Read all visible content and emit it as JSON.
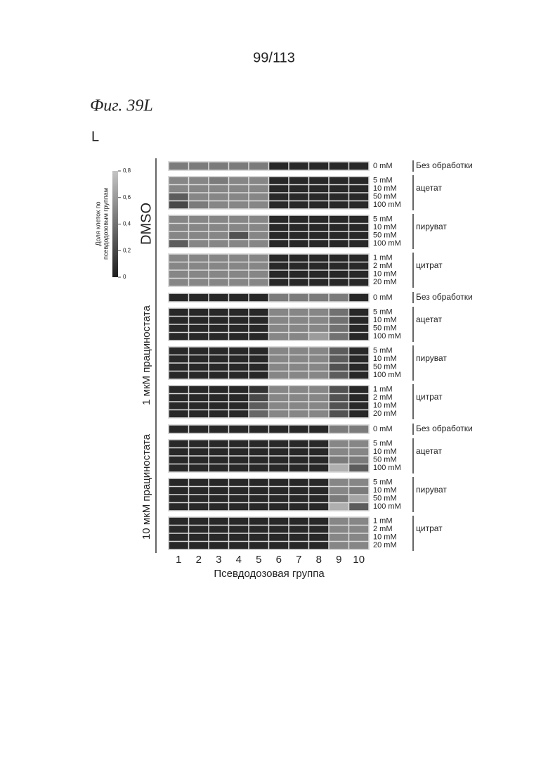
{
  "page": {
    "number": "99/113",
    "figure": "Фиг. 39L",
    "panel": "L"
  },
  "chart_data": {
    "type": "heatmap",
    "x_label": "Псевдодозовая группа",
    "categories": [
      1,
      2,
      3,
      4,
      5,
      6,
      7,
      8,
      9,
      10
    ],
    "colorbar_label": [
      "Доля клеток по",
      "псевдодозовым группам"
    ],
    "colorbar_lim": [
      0,
      0.8
    ],
    "colorbar_ticks": [
      0,
      {
        "value": 0.2,
        "label": "0,2"
      },
      {
        "value": 0.4,
        "label": "0,4"
      },
      {
        "value": 0.6,
        "label": "0,6"
      },
      {
        "value": 0.8,
        "label": "0,8"
      }
    ],
    "colors": [
      "#1e1e1e",
      "#c4c4c4"
    ],
    "groups": [
      {
        "name": "DMSO",
        "blocks": [
          {
            "name": "Без обработки",
            "rows": [
              "0 mM"
            ],
            "values": [
              [
                0.45,
                0.45,
                0.45,
                0.45,
                0.45,
                0.05,
                0.05,
                0.05,
                0.05,
                0.05
              ]
            ]
          },
          {
            "name": "ацетат",
            "rows": [
              "5 mM",
              "10 mM",
              "50 mM",
              "100 mM"
            ],
            "values": [
              [
                0.5,
                0.5,
                0.45,
                0.5,
                0.5,
                0.05,
                0.05,
                0.05,
                0.05,
                0.05
              ],
              [
                0.5,
                0.5,
                0.5,
                0.5,
                0.5,
                0.05,
                0.05,
                0.05,
                0.05,
                0.05
              ],
              [
                0.3,
                0.5,
                0.5,
                0.5,
                0.5,
                0.05,
                0.05,
                0.05,
                0.05,
                0.05
              ],
              [
                0.2,
                0.45,
                0.5,
                0.5,
                0.5,
                0.05,
                0.05,
                0.05,
                0.05,
                0.05
              ]
            ]
          },
          {
            "name": "пируват",
            "rows": [
              "5 mM",
              "10 mM",
              "50 mM",
              "100 mM"
            ],
            "values": [
              [
                0.5,
                0.5,
                0.5,
                0.5,
                0.5,
                0.05,
                0.05,
                0.05,
                0.05,
                0.05
              ],
              [
                0.5,
                0.5,
                0.5,
                0.5,
                0.5,
                0.05,
                0.05,
                0.05,
                0.05,
                0.05
              ],
              [
                0.5,
                0.5,
                0.5,
                0.25,
                0.5,
                0.05,
                0.05,
                0.05,
                0.05,
                0.05
              ],
              [
                0.3,
                0.5,
                0.5,
                0.5,
                0.5,
                0.05,
                0.05,
                0.05,
                0.05,
                0.05
              ]
            ]
          },
          {
            "name": "цитрат",
            "rows": [
              "1 mM",
              "2 mM",
              "10 mM",
              "20 mM"
            ],
            "values": [
              [
                0.5,
                0.5,
                0.5,
                0.5,
                0.5,
                0.05,
                0.05,
                0.05,
                0.05,
                0.05
              ],
              [
                0.5,
                0.5,
                0.5,
                0.5,
                0.5,
                0.05,
                0.05,
                0.05,
                0.05,
                0.05
              ],
              [
                0.5,
                0.5,
                0.5,
                0.5,
                0.5,
                0.05,
                0.05,
                0.05,
                0.05,
                0.05
              ],
              [
                0.5,
                0.5,
                0.5,
                0.5,
                0.5,
                0.05,
                0.05,
                0.05,
                0.05,
                0.05
              ]
            ]
          }
        ]
      },
      {
        "name": "1 мкМ працинocтата",
        "blocks": [
          {
            "name": "Без обработки",
            "rows": [
              "0 mM"
            ],
            "values": [
              [
                0.05,
                0.05,
                0.05,
                0.05,
                0.05,
                0.45,
                0.45,
                0.45,
                0.45,
                0.05
              ]
            ]
          },
          {
            "name": "ацетат",
            "rows": [
              "5 mM",
              "10 mM",
              "50 mM",
              "100 mM"
            ],
            "values": [
              [
                0.05,
                0.05,
                0.05,
                0.05,
                0.05,
                0.5,
                0.5,
                0.5,
                0.4,
                0.05
              ],
              [
                0.05,
                0.05,
                0.05,
                0.05,
                0.05,
                0.5,
                0.5,
                0.5,
                0.4,
                0.05
              ],
              [
                0.05,
                0.05,
                0.05,
                0.05,
                0.05,
                0.5,
                0.5,
                0.5,
                0.4,
                0.05
              ],
              [
                0.05,
                0.05,
                0.05,
                0.05,
                0.05,
                0.5,
                0.5,
                0.6,
                0.4,
                0.05
              ]
            ]
          },
          {
            "name": "пируват",
            "rows": [
              "5 mM",
              "10 mM",
              "50 mM",
              "100 mM"
            ],
            "values": [
              [
                0.05,
                0.05,
                0.05,
                0.05,
                0.05,
                0.5,
                0.5,
                0.5,
                0.3,
                0.05
              ],
              [
                0.05,
                0.05,
                0.05,
                0.05,
                0.05,
                0.5,
                0.5,
                0.5,
                0.3,
                0.05
              ],
              [
                0.05,
                0.05,
                0.05,
                0.05,
                0.05,
                0.5,
                0.5,
                0.5,
                0.25,
                0.05
              ],
              [
                0.05,
                0.05,
                0.05,
                0.05,
                0.05,
                0.5,
                0.5,
                0.5,
                0.3,
                0.05
              ]
            ]
          },
          {
            "name": "цитрат",
            "rows": [
              "1 mM",
              "2 mM",
              "10 mM",
              "20 mM"
            ],
            "values": [
              [
                0.05,
                0.05,
                0.05,
                0.05,
                0.1,
                0.5,
                0.5,
                0.5,
                0.25,
                0.05
              ],
              [
                0.05,
                0.05,
                0.05,
                0.05,
                0.2,
                0.5,
                0.5,
                0.5,
                0.25,
                0.05
              ],
              [
                0.05,
                0.05,
                0.05,
                0.05,
                0.3,
                0.5,
                0.5,
                0.5,
                0.25,
                0.05
              ],
              [
                0.05,
                0.05,
                0.05,
                0.05,
                0.35,
                0.5,
                0.5,
                0.5,
                0.25,
                0.05
              ]
            ]
          }
        ]
      },
      {
        "name": "10 мкМ працинocтата",
        "blocks": [
          {
            "name": "Без обработки",
            "rows": [
              "0 mM"
            ],
            "values": [
              [
                0.05,
                0.05,
                0.05,
                0.05,
                0.05,
                0.05,
                0.05,
                0.05,
                0.45,
                0.45
              ]
            ]
          },
          {
            "name": "ацетат",
            "rows": [
              "5 mM",
              "10 mM",
              "50 mM",
              "100 mM"
            ],
            "values": [
              [
                0.05,
                0.05,
                0.05,
                0.05,
                0.05,
                0.05,
                0.05,
                0.05,
                0.5,
                0.5
              ],
              [
                0.05,
                0.05,
                0.05,
                0.05,
                0.05,
                0.05,
                0.05,
                0.05,
                0.5,
                0.5
              ],
              [
                0.05,
                0.05,
                0.05,
                0.05,
                0.05,
                0.05,
                0.05,
                0.05,
                0.45,
                0.45
              ],
              [
                0.05,
                0.05,
                0.05,
                0.05,
                0.05,
                0.05,
                0.05,
                0.05,
                0.7,
                0.3
              ]
            ]
          },
          {
            "name": "пируват",
            "rows": [
              "5 mM",
              "10 mM",
              "50 mM",
              "100 mM"
            ],
            "values": [
              [
                0.05,
                0.05,
                0.05,
                0.05,
                0.05,
                0.05,
                0.05,
                0.05,
                0.5,
                0.5
              ],
              [
                0.05,
                0.05,
                0.05,
                0.05,
                0.05,
                0.05,
                0.05,
                0.05,
                0.5,
                0.45
              ],
              [
                0.05,
                0.05,
                0.05,
                0.05,
                0.05,
                0.05,
                0.05,
                0.05,
                0.45,
                0.65
              ],
              [
                0.05,
                0.05,
                0.05,
                0.05,
                0.05,
                0.05,
                0.05,
                0.05,
                0.7,
                0.3
              ]
            ]
          },
          {
            "name": "цитрат",
            "rows": [
              "1 mM",
              "2 mM",
              "10 mM",
              "20 mM"
            ],
            "values": [
              [
                0.05,
                0.05,
                0.05,
                0.05,
                0.05,
                0.05,
                0.05,
                0.05,
                0.5,
                0.5
              ],
              [
                0.05,
                0.05,
                0.05,
                0.05,
                0.05,
                0.05,
                0.05,
                0.05,
                0.5,
                0.5
              ],
              [
                0.05,
                0.05,
                0.05,
                0.05,
                0.05,
                0.05,
                0.05,
                0.05,
                0.5,
                0.5
              ],
              [
                0.05,
                0.05,
                0.05,
                0.05,
                0.05,
                0.05,
                0.05,
                0.05,
                0.5,
                0.5
              ]
            ]
          }
        ]
      }
    ]
  }
}
